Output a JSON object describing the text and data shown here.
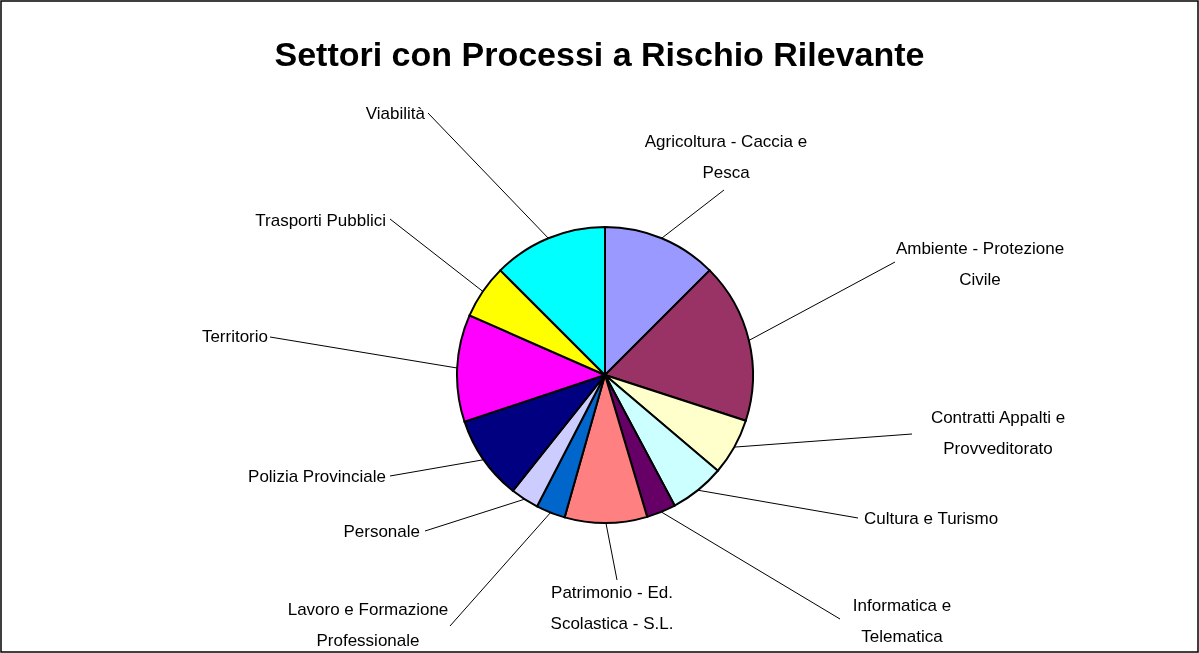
{
  "chart_data": {
    "type": "pie",
    "title": "Settori con Processi a Rischio Rilevante",
    "categories": [
      "Agricoltura - Caccia e Pesca",
      "Ambiente - Protezione Civile",
      "Contratti Appalti e Provveditorato",
      "Cultura e Turismo",
      "Informatica e Telematica",
      "Patrimonio - Ed. Scolastica - S.L.",
      "Lavoro e Formazione Professionale",
      "Personale",
      "Polizia Provinciale",
      "Territorio",
      "Trasporti Pubblici",
      "Viabilità"
    ],
    "values": [
      12.5,
      17.5,
      6.2,
      6.0,
      3.2,
      9.0,
      3.2,
      3.1,
      9.2,
      11.7,
      5.9,
      12.5
    ],
    "colors": [
      "#9999ff",
      "#993366",
      "#ffffcc",
      "#ccffff",
      "#660066",
      "#ff8080",
      "#0066cc",
      "#ccccff",
      "#000080",
      "#ff00ff",
      "#ffff00",
      "#00ffff"
    ]
  }
}
